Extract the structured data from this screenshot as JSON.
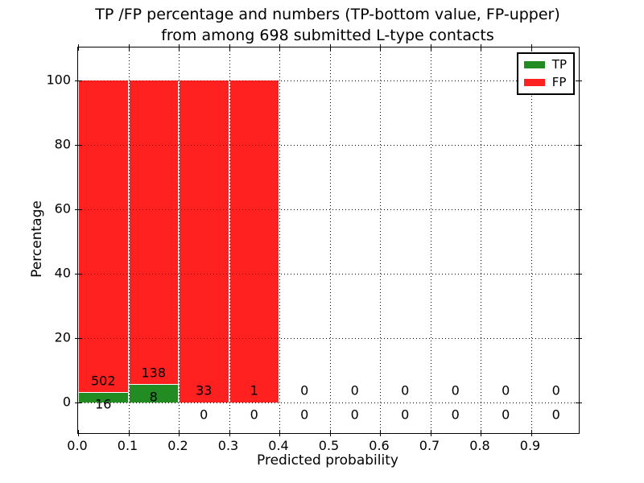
{
  "figure": {
    "title_line1": "TP /FP percentage and numbers (TP-bottom value, FP-upper)",
    "title_line2": "from among 698 submitted L-type contacts"
  },
  "chart_data": {
    "type": "bar",
    "stacked": true,
    "title": "TP /FP percentage and numbers (TP-bottom value, FP-upper)\nfrom among 698 submitted L-type contacts",
    "xlabel": "Predicted probability",
    "ylabel": "Percentage",
    "total_submitted": 698,
    "grid": "dotted",
    "gridline_color": "#000000",
    "background_color": "#ffffff",
    "xticks": [
      "0.0",
      "0.1",
      "0.2",
      "0.3",
      "0.4",
      "0.5",
      "0.6",
      "0.7",
      "0.8",
      "0.9"
    ],
    "xtick_values": [
      0.0,
      0.1,
      0.2,
      0.3,
      0.4,
      0.5,
      0.6,
      0.7,
      0.8,
      0.9
    ],
    "yticks": [
      0,
      20,
      40,
      60,
      80,
      100
    ],
    "xlim": [
      0.0,
      0.995
    ],
    "ylim": [
      -9.5,
      110.5
    ],
    "legend": {
      "position": "upper right",
      "entries": [
        {
          "label": "TP",
          "color": "#228b22"
        },
        {
          "label": "FP",
          "color": "#ff2020"
        }
      ]
    },
    "bins": [
      {
        "x_start": 0.0,
        "x_end": 0.1,
        "tp_count": 16,
        "fp_count": 502,
        "tp_pct": 3.09,
        "fp_pct": 96.91
      },
      {
        "x_start": 0.1,
        "x_end": 0.2,
        "tp_count": 8,
        "fp_count": 138,
        "tp_pct": 5.48,
        "fp_pct": 94.52
      },
      {
        "x_start": 0.2,
        "x_end": 0.3,
        "tp_count": 0,
        "fp_count": 33,
        "tp_pct": 0,
        "fp_pct": 100
      },
      {
        "x_start": 0.3,
        "x_end": 0.4,
        "tp_count": 0,
        "fp_count": 1,
        "tp_pct": 0,
        "fp_pct": 100
      },
      {
        "x_start": 0.4,
        "x_end": 0.5,
        "tp_count": 0,
        "fp_count": 0,
        "tp_pct": 0,
        "fp_pct": 0
      },
      {
        "x_start": 0.5,
        "x_end": 0.6,
        "tp_count": 0,
        "fp_count": 0,
        "tp_pct": 0,
        "fp_pct": 0
      },
      {
        "x_start": 0.6,
        "x_end": 0.7,
        "tp_count": 0,
        "fp_count": 0,
        "tp_pct": 0,
        "fp_pct": 0
      },
      {
        "x_start": 0.7,
        "x_end": 0.8,
        "tp_count": 0,
        "fp_count": 0,
        "tp_pct": 0,
        "fp_pct": 0
      },
      {
        "x_start": 0.8,
        "x_end": 0.9,
        "tp_count": 0,
        "fp_count": 0,
        "tp_pct": 0,
        "fp_pct": 0
      },
      {
        "x_start": 0.9,
        "x_end": 1.0,
        "tp_count": 0,
        "fp_count": 0,
        "tp_pct": 0,
        "fp_pct": 0
      }
    ]
  }
}
